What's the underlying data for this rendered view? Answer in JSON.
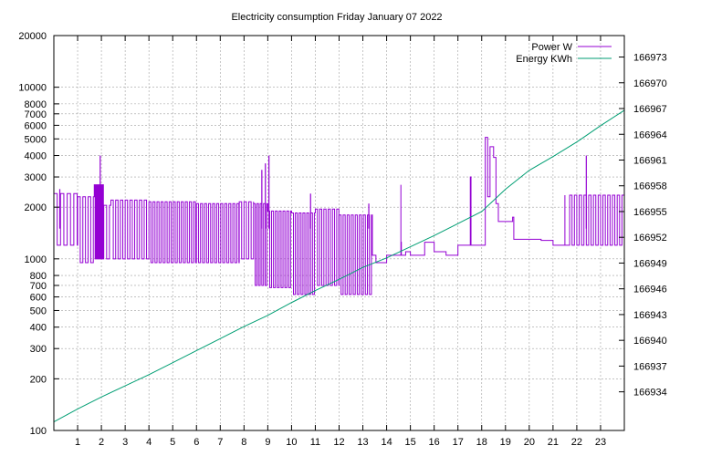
{
  "chart_data": {
    "type": "line",
    "title": "Electricity consumption Friday January 07 2022",
    "xlabel": "",
    "ylabel": "",
    "y2label": "",
    "xlim": [
      0,
      24
    ],
    "x_ticks": [
      1,
      2,
      3,
      4,
      5,
      6,
      7,
      8,
      9,
      10,
      11,
      12,
      13,
      14,
      15,
      16,
      17,
      18,
      19,
      20,
      21,
      22,
      23
    ],
    "y_scale": "log",
    "ylim": [
      100,
      20000
    ],
    "y_ticks": [
      100,
      200,
      300,
      400,
      500,
      600,
      700,
      800,
      1000,
      2000,
      3000,
      4000,
      5000,
      6000,
      7000,
      8000,
      10000,
      20000
    ],
    "y2lim": [
      166929.5,
      166975.5
    ],
    "y2_ticks": [
      166934,
      166937,
      166940,
      166943,
      166946,
      166949,
      166952,
      166955,
      166958,
      166961,
      166964,
      166967,
      166970,
      166973
    ],
    "grid": true,
    "legend_position": "top-right",
    "series": [
      {
        "name": "Power W",
        "axis": "y1",
        "color": "#9400d3",
        "segments": [
          {
            "from": 0.0,
            "to": 1.0,
            "step": 0.14,
            "low": 1200,
            "high": 2400
          },
          {
            "from": 1.0,
            "to": 1.7,
            "step": 0.11,
            "low": 950,
            "high": 2300
          },
          {
            "from": 1.7,
            "to": 2.1,
            "step": 0.035,
            "low": 1000,
            "high": 2700
          },
          {
            "from": 2.1,
            "to": 2.4,
            "step": 0.12,
            "low": 1000,
            "high": 2050
          },
          {
            "from": 2.4,
            "to": 4.0,
            "step": 0.1,
            "low": 1000,
            "high": 2200
          },
          {
            "from": 4.0,
            "to": 6.0,
            "step": 0.085,
            "low": 950,
            "high": 2150
          },
          {
            "from": 6.0,
            "to": 7.8,
            "step": 0.085,
            "low": 950,
            "high": 2100
          },
          {
            "from": 7.8,
            "to": 8.4,
            "step": 0.1,
            "low": 1000,
            "high": 2150
          },
          {
            "from": 8.4,
            "to": 9.0,
            "step": 0.07,
            "low": 700,
            "high": 2100
          },
          {
            "from": 9.0,
            "to": 10.0,
            "step": 0.08,
            "low": 680,
            "high": 1900
          },
          {
            "from": 10.0,
            "to": 11.0,
            "step": 0.08,
            "low": 620,
            "high": 1850
          },
          {
            "from": 11.0,
            "to": 12.0,
            "step": 0.09,
            "low": 700,
            "high": 1950
          },
          {
            "from": 12.0,
            "to": 13.4,
            "step": 0.085,
            "low": 620,
            "high": 1800
          },
          {
            "from": 21.5,
            "to": 24.0,
            "step": 0.1,
            "low": 1200,
            "high": 2350
          }
        ],
        "spikes": [
          {
            "x": 0.25,
            "value": 2550
          },
          {
            "x": 1.95,
            "value": 4000
          },
          {
            "x": 8.75,
            "value": 3300
          },
          {
            "x": 8.9,
            "value": 3600
          },
          {
            "x": 9.05,
            "value": 4000
          },
          {
            "x": 10.8,
            "value": 2400
          },
          {
            "x": 13.25,
            "value": 2100
          },
          {
            "x": 22.4,
            "value": 4000
          }
        ],
        "steps": [
          [
            13.4,
            1050
          ],
          [
            13.55,
            950
          ],
          [
            14.0,
            1050
          ],
          [
            14.5,
            1050
          ],
          [
            14.6,
            2700
          ],
          [
            14.62,
            1050
          ],
          [
            14.6,
            1250
          ],
          [
            14.8,
            1100
          ],
          [
            15.0,
            1050
          ],
          [
            15.5,
            1050
          ],
          [
            15.6,
            1250
          ],
          [
            16.0,
            1100
          ],
          [
            16.5,
            1050
          ],
          [
            17.0,
            1200
          ],
          [
            17.5,
            1200
          ],
          [
            17.52,
            3000
          ],
          [
            17.55,
            1200
          ],
          [
            18.1,
            1200
          ],
          [
            18.15,
            5100
          ],
          [
            18.25,
            2300
          ],
          [
            18.35,
            4500
          ],
          [
            18.5,
            3900
          ],
          [
            18.6,
            2100
          ],
          [
            18.7,
            1650
          ],
          [
            19.0,
            1650
          ],
          [
            19.2,
            1650
          ],
          [
            19.3,
            1750
          ],
          [
            19.35,
            1300
          ],
          [
            20.0,
            1300
          ],
          [
            20.5,
            1280
          ],
          [
            21.0,
            1200
          ],
          [
            21.5,
            1200
          ]
        ]
      },
      {
        "name": "Energy KWh",
        "axis": "y2",
        "color": "#009e73",
        "points": [
          [
            0.0,
            166930.5
          ],
          [
            1.0,
            166932.0
          ],
          [
            2.0,
            166933.4
          ],
          [
            3.0,
            166934.7
          ],
          [
            4.0,
            166936.0
          ],
          [
            5.0,
            166937.4
          ],
          [
            6.0,
            166938.8
          ],
          [
            7.0,
            166940.2
          ],
          [
            8.0,
            166941.6
          ],
          [
            9.0,
            166942.9
          ],
          [
            10.0,
            166944.4
          ],
          [
            11.0,
            166945.8
          ],
          [
            12.0,
            166947.1
          ],
          [
            13.0,
            166948.5
          ],
          [
            14.0,
            166949.6
          ],
          [
            15.0,
            166950.9
          ],
          [
            16.0,
            166952.2
          ],
          [
            17.0,
            166953.6
          ],
          [
            18.0,
            166955.0
          ],
          [
            19.0,
            166957.6
          ],
          [
            20.0,
            166959.8
          ],
          [
            21.0,
            166961.4
          ],
          [
            22.0,
            166963.1
          ],
          [
            23.0,
            166965.0
          ],
          [
            24.0,
            166966.8
          ]
        ]
      }
    ]
  }
}
